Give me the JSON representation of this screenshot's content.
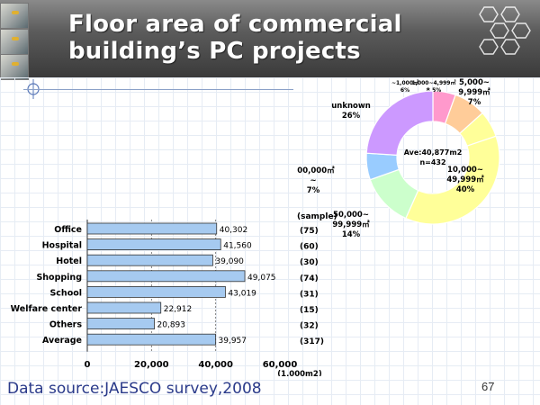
{
  "slide": {
    "title_line1": "Floor area of commercial",
    "title_line2": "building’s PC projects",
    "source": "Data source:JAESCO survey,2008",
    "page_number": "67"
  },
  "chart_data": [
    {
      "type": "bar",
      "orientation": "horizontal",
      "categories": [
        "Office",
        "Hospital",
        "Hotel",
        "Shopping",
        "School",
        "Welfare center",
        "Others",
        "Average"
      ],
      "values": [
        40302,
        41560,
        39090,
        49075,
        43019,
        22912,
        20893,
        39957
      ],
      "value_labels": [
        "40,302",
        "41,560",
        "39,090",
        "49,075",
        "43,019",
        "22,912",
        "20,893",
        "39,957"
      ],
      "sample_header": "(sample)",
      "samples": [
        "(75)",
        "(60)",
        "(30)",
        "(74)",
        "(31)",
        "(15)",
        "(32)",
        "(317)"
      ],
      "xlim": [
        0,
        60000
      ],
      "x_ticks": [
        "0",
        "20,000",
        "40,000",
        "60,000"
      ],
      "x_unit": "(1,000m2)",
      "bar_color": "#a6caf0"
    },
    {
      "type": "pie",
      "donut": true,
      "center_lines": [
        "Ave:40,877m2",
        "n=432"
      ],
      "slices": [
        {
          "label_lines": [
            "~1,000㎡",
            "6%"
          ],
          "value": 6,
          "color": "#ff99cc"
        },
        {
          "label_lines": [
            "1,000~4,999㎡",
            "8.5%"
          ],
          "value": 8.5,
          "color": "#ffcc99"
        },
        {
          "label_lines": [
            "5,000~",
            "9,999㎡",
            "7%"
          ],
          "value": 7,
          "color": "#ffff99"
        },
        {
          "label_lines": [
            "10,000~",
            "49,999㎡",
            "40%"
          ],
          "value": 40,
          "color": "#ffff99"
        },
        {
          "label_lines": [
            "50,000~",
            "99,999㎡",
            "14%"
          ],
          "value": 14,
          "color": "#ccffcc"
        },
        {
          "label_lines": [
            "100,000㎡",
            "~",
            "7%"
          ],
          "value": 7,
          "color": "#99ccff"
        },
        {
          "label_lines": [
            "unknown",
            "26%"
          ],
          "value": 26,
          "color": "#cc99ff"
        }
      ]
    }
  ]
}
